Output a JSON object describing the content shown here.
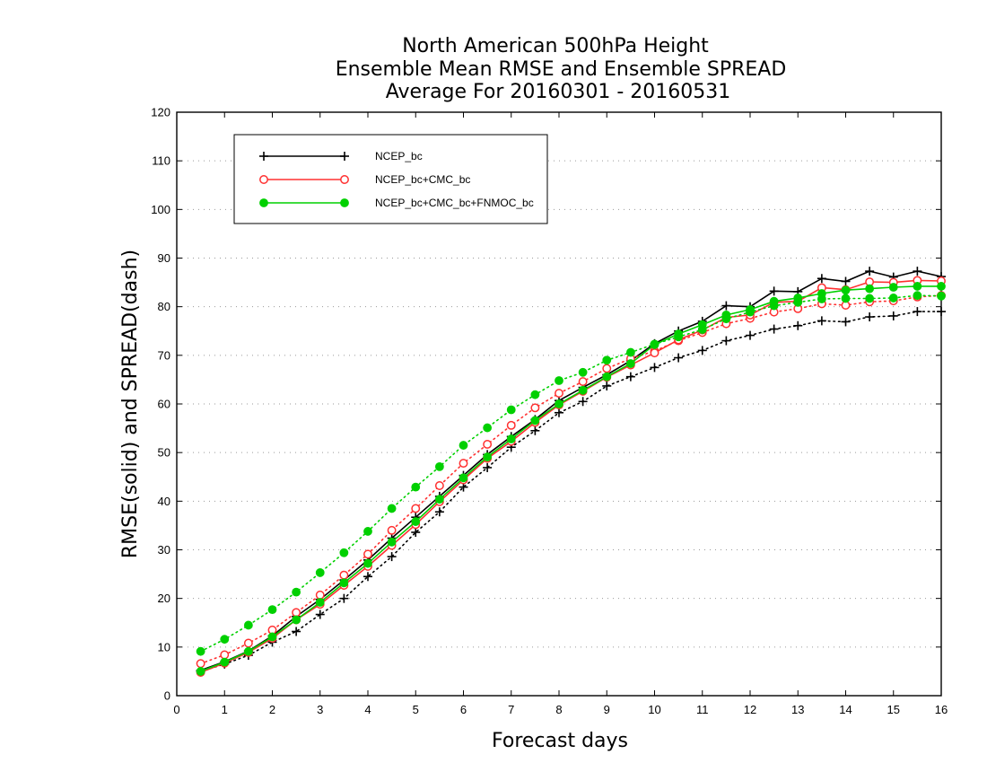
{
  "chart_data": {
    "type": "line",
    "title": [
      "North American 500hPa Height",
      "Ensemble Mean RMSE and Ensemble SPREAD",
      "Average For 20160301 - 20160531"
    ],
    "xlabel": "Forecast days",
    "ylabel": "RMSE(solid) and SPREAD(dash)",
    "xlim": [
      0,
      16
    ],
    "ylim": [
      0,
      120
    ],
    "xticks": [
      0,
      1,
      2,
      3,
      4,
      5,
      6,
      7,
      8,
      9,
      10,
      11,
      12,
      13,
      14,
      15,
      16
    ],
    "yticks": [
      0,
      10,
      20,
      30,
      40,
      50,
      60,
      70,
      80,
      90,
      100,
      110,
      120
    ],
    "grid": true,
    "legend_position": "top-left",
    "x": [
      0.5,
      1,
      1.5,
      2,
      2.5,
      3,
      3.5,
      4,
      4.5,
      5,
      5.5,
      6,
      6.5,
      7,
      7.5,
      8,
      8.5,
      9,
      9.5,
      10,
      10.5,
      11,
      11.5,
      12,
      12.5,
      13,
      13.5,
      14,
      14.5,
      15,
      15.5,
      16
    ],
    "series": [
      {
        "name": "NCEP_bc",
        "color": "#000000",
        "marker": "plus",
        "rmse": [
          5.2,
          7.0,
          9.2,
          12.3,
          16.3,
          19.8,
          23.8,
          27.9,
          32.4,
          36.7,
          41.0,
          45.3,
          49.6,
          53.3,
          56.8,
          60.7,
          63.4,
          66.0,
          68.9,
          72.4,
          75.0,
          77.0,
          80.2,
          80.0,
          83.2,
          83.1,
          85.8,
          85.2,
          87.3,
          86.1,
          87.3,
          86.2
        ],
        "spread": [
          5.0,
          6.5,
          8.3,
          11.0,
          13.2,
          16.7,
          20.0,
          24.5,
          28.6,
          33.6,
          37.8,
          42.9,
          46.9,
          51.1,
          54.5,
          58.2,
          60.5,
          63.7,
          65.6,
          67.5,
          69.5,
          71.0,
          73.0,
          74.1,
          75.4,
          76.1,
          77.1,
          76.9,
          77.9,
          78.1,
          79.0,
          79.0
        ]
      },
      {
        "name": "NCEP_bc+CMC_bc",
        "color": "#ff3030",
        "marker": "open-circle",
        "rmse": [
          4.8,
          6.7,
          8.9,
          11.8,
          15.6,
          18.8,
          22.7,
          26.6,
          30.9,
          35.2,
          39.9,
          44.4,
          48.8,
          52.3,
          56.2,
          59.8,
          62.6,
          65.5,
          68.0,
          70.5,
          73.2,
          75.2,
          77.8,
          78.3,
          80.9,
          81.1,
          83.9,
          83.5,
          85.1,
          85.0,
          85.4,
          85.3
        ],
        "spread": [
          6.6,
          8.4,
          10.8,
          13.5,
          17.1,
          20.7,
          24.8,
          29.1,
          34.0,
          38.5,
          43.2,
          47.8,
          51.7,
          55.6,
          59.2,
          62.2,
          64.6,
          67.3,
          69.3,
          70.9,
          73.0,
          74.7,
          76.5,
          77.6,
          78.9,
          79.6,
          80.6,
          80.3,
          81.0,
          81.2,
          82.0,
          82.3
        ]
      },
      {
        "name": "NCEP_bc+CMC_bc+FNMOC_bc",
        "color": "#00d000",
        "marker": "filled-circle",
        "rmse": [
          5.0,
          6.9,
          9.1,
          12.1,
          15.6,
          19.2,
          23.2,
          27.2,
          31.6,
          35.8,
          40.4,
          44.8,
          49.1,
          52.8,
          56.6,
          60.0,
          62.8,
          65.6,
          68.3,
          72.2,
          74.4,
          76.3,
          78.3,
          79.4,
          81.1,
          81.8,
          82.7,
          83.4,
          83.7,
          84.0,
          84.2,
          84.2
        ],
        "spread": [
          9.1,
          11.6,
          14.5,
          17.7,
          21.3,
          25.3,
          29.4,
          33.8,
          38.5,
          42.9,
          47.1,
          51.5,
          55.1,
          58.8,
          61.9,
          64.8,
          66.5,
          69.0,
          70.6,
          72.3,
          73.8,
          75.3,
          77.5,
          78.9,
          80.2,
          80.9,
          81.6,
          81.7,
          81.7,
          81.8,
          82.3,
          82.2
        ]
      }
    ]
  }
}
